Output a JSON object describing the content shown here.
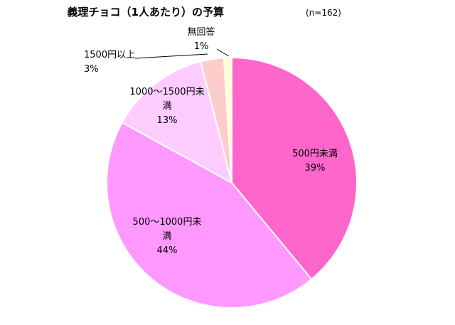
{
  "chart_data": {
    "type": "pie",
    "title": "義理チョコ（1人あたり）の予算",
    "subtitle": "(n=162)",
    "legend": "none",
    "slices": [
      {
        "label_lines": [
          "500円未満"
        ],
        "value": 39,
        "value_label": "39%",
        "color": "#ff66cc"
      },
      {
        "label_lines": [
          "500～1000円未",
          "満"
        ],
        "value": 44,
        "value_label": "44%",
        "color": "#ff99ff"
      },
      {
        "label_lines": [
          "1000～1500円未",
          "満"
        ],
        "value": 13,
        "value_label": "13%",
        "color": "#ffccff"
      },
      {
        "label_lines": [
          "1500円以上"
        ],
        "value": 3,
        "value_label": "3%",
        "color": "#ffcccc"
      },
      {
        "label_lines": [
          "無回答"
        ],
        "value": 1,
        "value_label": "1%",
        "color": "#ffffcc"
      }
    ]
  }
}
